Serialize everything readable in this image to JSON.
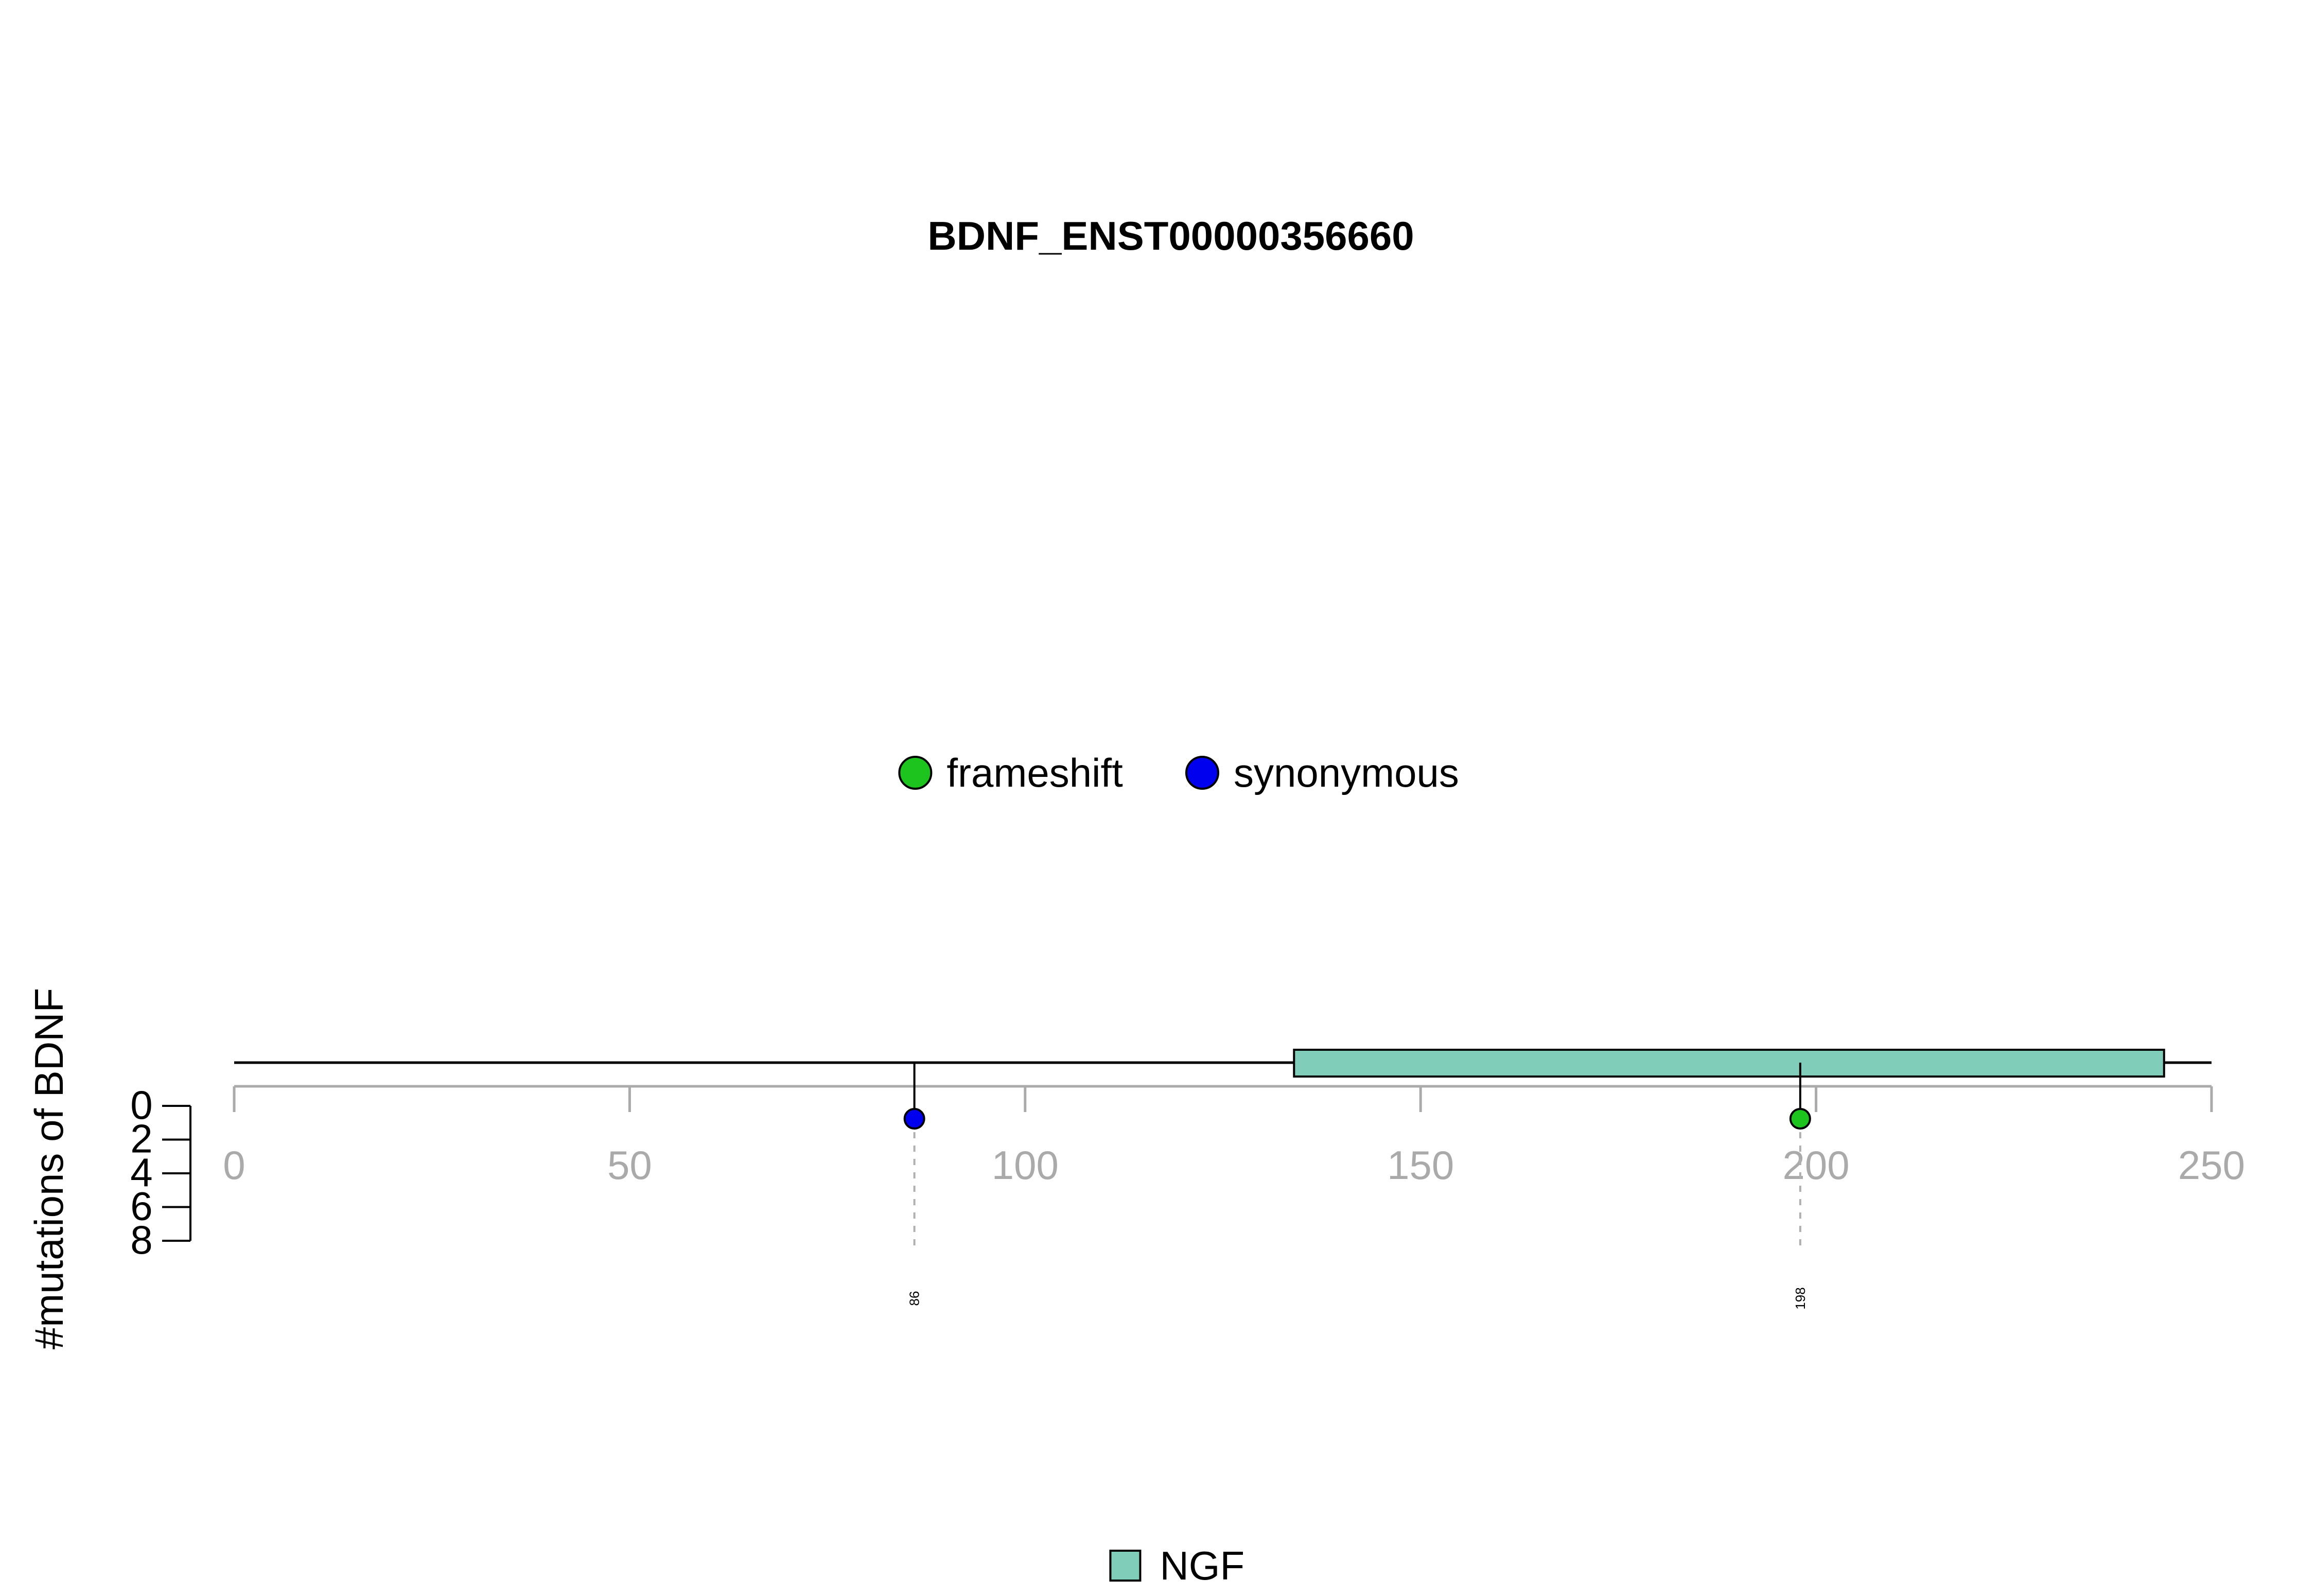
{
  "chart_data": {
    "type": "lollipop",
    "title": "BDNF_ENST00000356660",
    "ylabel": "#mutations of BDNF",
    "xlim": [
      0,
      250
    ],
    "x_ticks": [
      0,
      50,
      100,
      150,
      200,
      250
    ],
    "y_ticks": [
      0,
      2,
      4,
      6,
      8
    ],
    "ylim": [
      0,
      8
    ],
    "protein_length": 250,
    "mutation_legend": [
      {
        "label": "frameshift",
        "color": "#1dc41d"
      },
      {
        "label": "synonymous",
        "color": "#0000ee"
      }
    ],
    "mutations": [
      {
        "position": 86,
        "count": 1,
        "type": "synonymous",
        "label": "86",
        "color": "#0000ee"
      },
      {
        "position": 198,
        "count": 1,
        "type": "frameshift",
        "label": "198",
        "color": "#1dc41d"
      }
    ],
    "domains": [
      {
        "name": "NGF",
        "start": 134,
        "end": 244,
        "color": "#80cdb9"
      }
    ],
    "domain_legend": [
      {
        "label": "NGF",
        "color": "#80cdb9"
      }
    ],
    "colors": {
      "axis_gray": "#aaaaaa",
      "connector_gray": "#b0b0b0",
      "black": "#000000"
    }
  }
}
